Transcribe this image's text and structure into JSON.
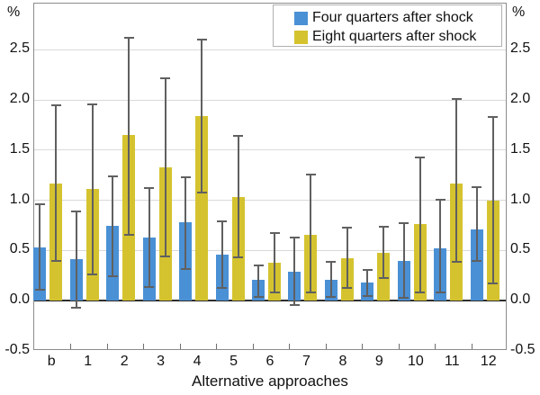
{
  "chart_data": {
    "type": "bar",
    "title": "",
    "xlabel": "Alternative approaches",
    "ylabel_left": "%",
    "ylabel_right": "%",
    "categories": [
      "b",
      "1",
      "2",
      "3",
      "4",
      "5",
      "6",
      "7",
      "8",
      "9",
      "10",
      "11",
      "12"
    ],
    "series": [
      {
        "name": "Four quarters after shock",
        "color": "#4a90d5",
        "values": [
          0.53,
          0.41,
          0.75,
          0.63,
          0.78,
          0.46,
          0.21,
          0.29,
          0.21,
          0.18,
          0.4,
          0.52,
          0.71
        ],
        "err_low": [
          0.11,
          -0.07,
          0.24,
          0.14,
          0.32,
          0.13,
          0.04,
          -0.04,
          0.04,
          0.05,
          0.03,
          0.08,
          0.4
        ],
        "err_high": [
          0.96,
          0.89,
          1.24,
          1.12,
          1.23,
          0.79,
          0.35,
          0.63,
          0.39,
          0.31,
          0.77,
          1.01,
          1.13
        ]
      },
      {
        "name": "Eight quarters after shock",
        "color": "#d4c32f",
        "values": [
          1.17,
          1.11,
          1.65,
          1.33,
          1.84,
          1.03,
          0.38,
          0.66,
          0.42,
          0.48,
          0.76,
          1.17,
          1.0
        ],
        "err_low": [
          0.4,
          0.26,
          0.66,
          0.44,
          1.08,
          0.43,
          0.08,
          0.08,
          0.13,
          0.23,
          0.08,
          0.39,
          0.17
        ],
        "err_high": [
          1.95,
          1.96,
          2.62,
          2.22,
          2.6,
          1.64,
          0.67,
          1.26,
          0.73,
          0.74,
          1.43,
          2.01,
          1.83
        ]
      }
    ],
    "ylim": [
      -0.5,
      2.96
    ],
    "yticks": [
      2.5,
      2.0,
      1.5,
      1.0,
      0.5,
      0.0,
      -0.5
    ],
    "ytick_labels": [
      "2.5",
      "2.0",
      "1.5",
      "1.0",
      "0.5",
      "0.0",
      "-0.5"
    ],
    "grid": true,
    "legend_position": "top-right",
    "error_bar_color": "#606060",
    "grid_color": "#d9d9d9",
    "zero_line_color": "#2e2e2e"
  }
}
